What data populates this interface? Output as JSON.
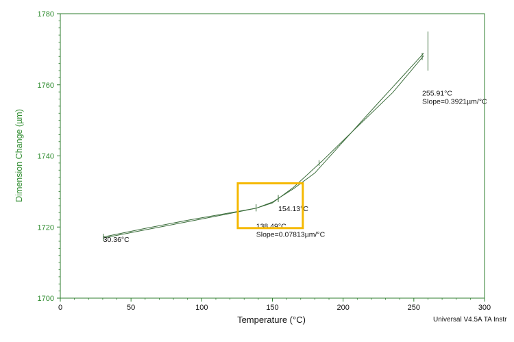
{
  "chart_data": {
    "type": "line",
    "title": "",
    "xlabel": "Temperature (°C)",
    "ylabel": "Dimension Change (µm)",
    "xlim": [
      0,
      300
    ],
    "ylim": [
      1700,
      1780
    ],
    "x_ticks": [
      "0",
      "50",
      "100",
      "150",
      "200",
      "250",
      "300"
    ],
    "y_ticks": [
      "1700",
      "1720",
      "1740",
      "1760",
      "1780"
    ],
    "grid": false,
    "footer": "Universal V4.5A TA Instr",
    "series": [
      {
        "x": [
          30.4,
          60,
          90,
          120,
          138.5,
          150,
          165,
          185,
          210,
          235,
          257
        ],
        "y": [
          1717.2,
          1719.6,
          1721.9,
          1724.0,
          1725.3,
          1726.8,
          1731.2,
          1738.5,
          1748.2,
          1757.8,
          1768.2
        ]
      },
      {
        "x": [
          257,
          240,
          220,
          200,
          180,
          165,
          150,
          138.5,
          120,
          90,
          60,
          30.4
        ],
        "y": [
          1768.9,
          1761.5,
          1752.8,
          1744.0,
          1735.2,
          1730.8,
          1727.0,
          1725.3,
          1723.8,
          1721.5,
          1719.2,
          1716.9
        ]
      }
    ],
    "markers": [
      {
        "x": 30.36,
        "y": 1717.1,
        "half_height": 1.0
      },
      {
        "x": 138.49,
        "y": 1725.4,
        "half_height": 1.0
      },
      {
        "x": 154.13,
        "y": 1728.0,
        "half_height": 1.0
      },
      {
        "x": 183.0,
        "y": 1738.0,
        "half_height": 0.8
      },
      {
        "x": 255.91,
        "y": 1768.0,
        "half_height": 1.0
      },
      {
        "x": 260.0,
        "y": 1769.5,
        "half_height": 5.5
      }
    ],
    "annotations": [
      {
        "lines": [
          "30.36°C"
        ],
        "x": 30.36,
        "y": 1715.8,
        "anchor": "left"
      },
      {
        "lines": [
          "138.49°C",
          "Slope=0.07813µm/°C"
        ],
        "x": 138.49,
        "y": 1719.6,
        "anchor": "left"
      },
      {
        "lines": [
          "154.13°C"
        ],
        "x": 154.13,
        "y": 1724.5,
        "anchor": "left"
      },
      {
        "lines": [
          "255.91°C",
          "Slope=0.3921µm/°C"
        ],
        "x": 255.91,
        "y": 1757.0,
        "anchor": "left"
      }
    ],
    "highlight": {
      "x": [
        125.5,
        171.5
      ],
      "y": [
        1719.7,
        1732.3
      ]
    },
    "colors": {
      "axis": "#2e7d2e",
      "line": "#3c6e3c",
      "label": "#2e8b2e",
      "highlight": "#f5b800"
    }
  }
}
